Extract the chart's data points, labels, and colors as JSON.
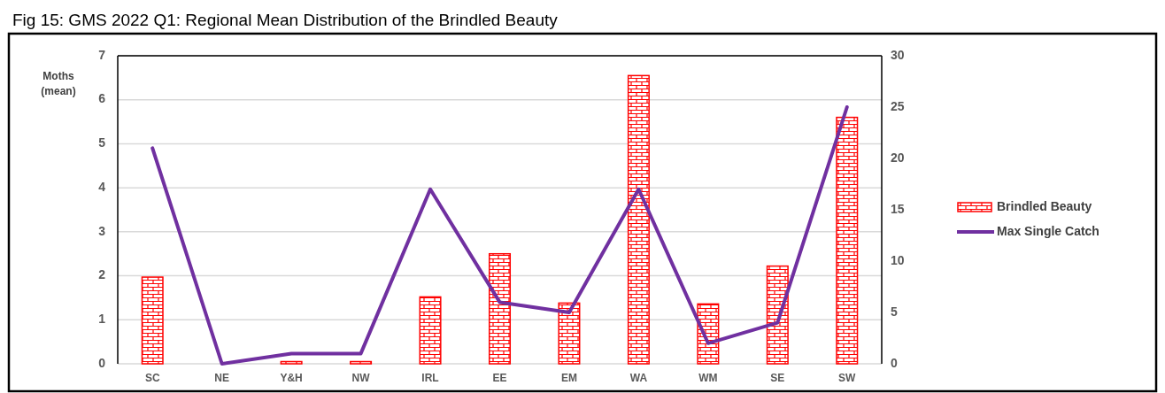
{
  "chart_data": {
    "type": "bar",
    "title": "Fig 15: GMS 2022 Q1: Regional Mean Distribution of the Brindled Beauty",
    "ylabel": "Moths (mean)",
    "categories": [
      "SC",
      "NE",
      "Y&H",
      "NW",
      "IRL",
      "EE",
      "EM",
      "WA",
      "WM",
      "SE",
      "SW"
    ],
    "series": [
      {
        "name": "Brindled Beauty",
        "color": "#ff0000",
        "values": [
          1.97,
          0,
          0.05,
          0.05,
          1.52,
          2.5,
          1.38,
          6.55,
          1.36,
          2.22,
          5.6
        ]
      },
      {
        "name": "Max Single Catch",
        "type": "line",
        "axis": "y2",
        "color": "#7030a0",
        "values": [
          21,
          0,
          1,
          1,
          17,
          6,
          5,
          17,
          2,
          4,
          25
        ]
      }
    ],
    "ylim": [
      0,
      7
    ],
    "yticks": [
      0,
      1,
      2,
      3,
      4,
      5,
      6,
      7
    ],
    "y2lim": [
      0,
      30
    ],
    "y2ticks": [
      0,
      5,
      10,
      15,
      20,
      25,
      30
    ],
    "grid": "y",
    "legend": "right"
  }
}
